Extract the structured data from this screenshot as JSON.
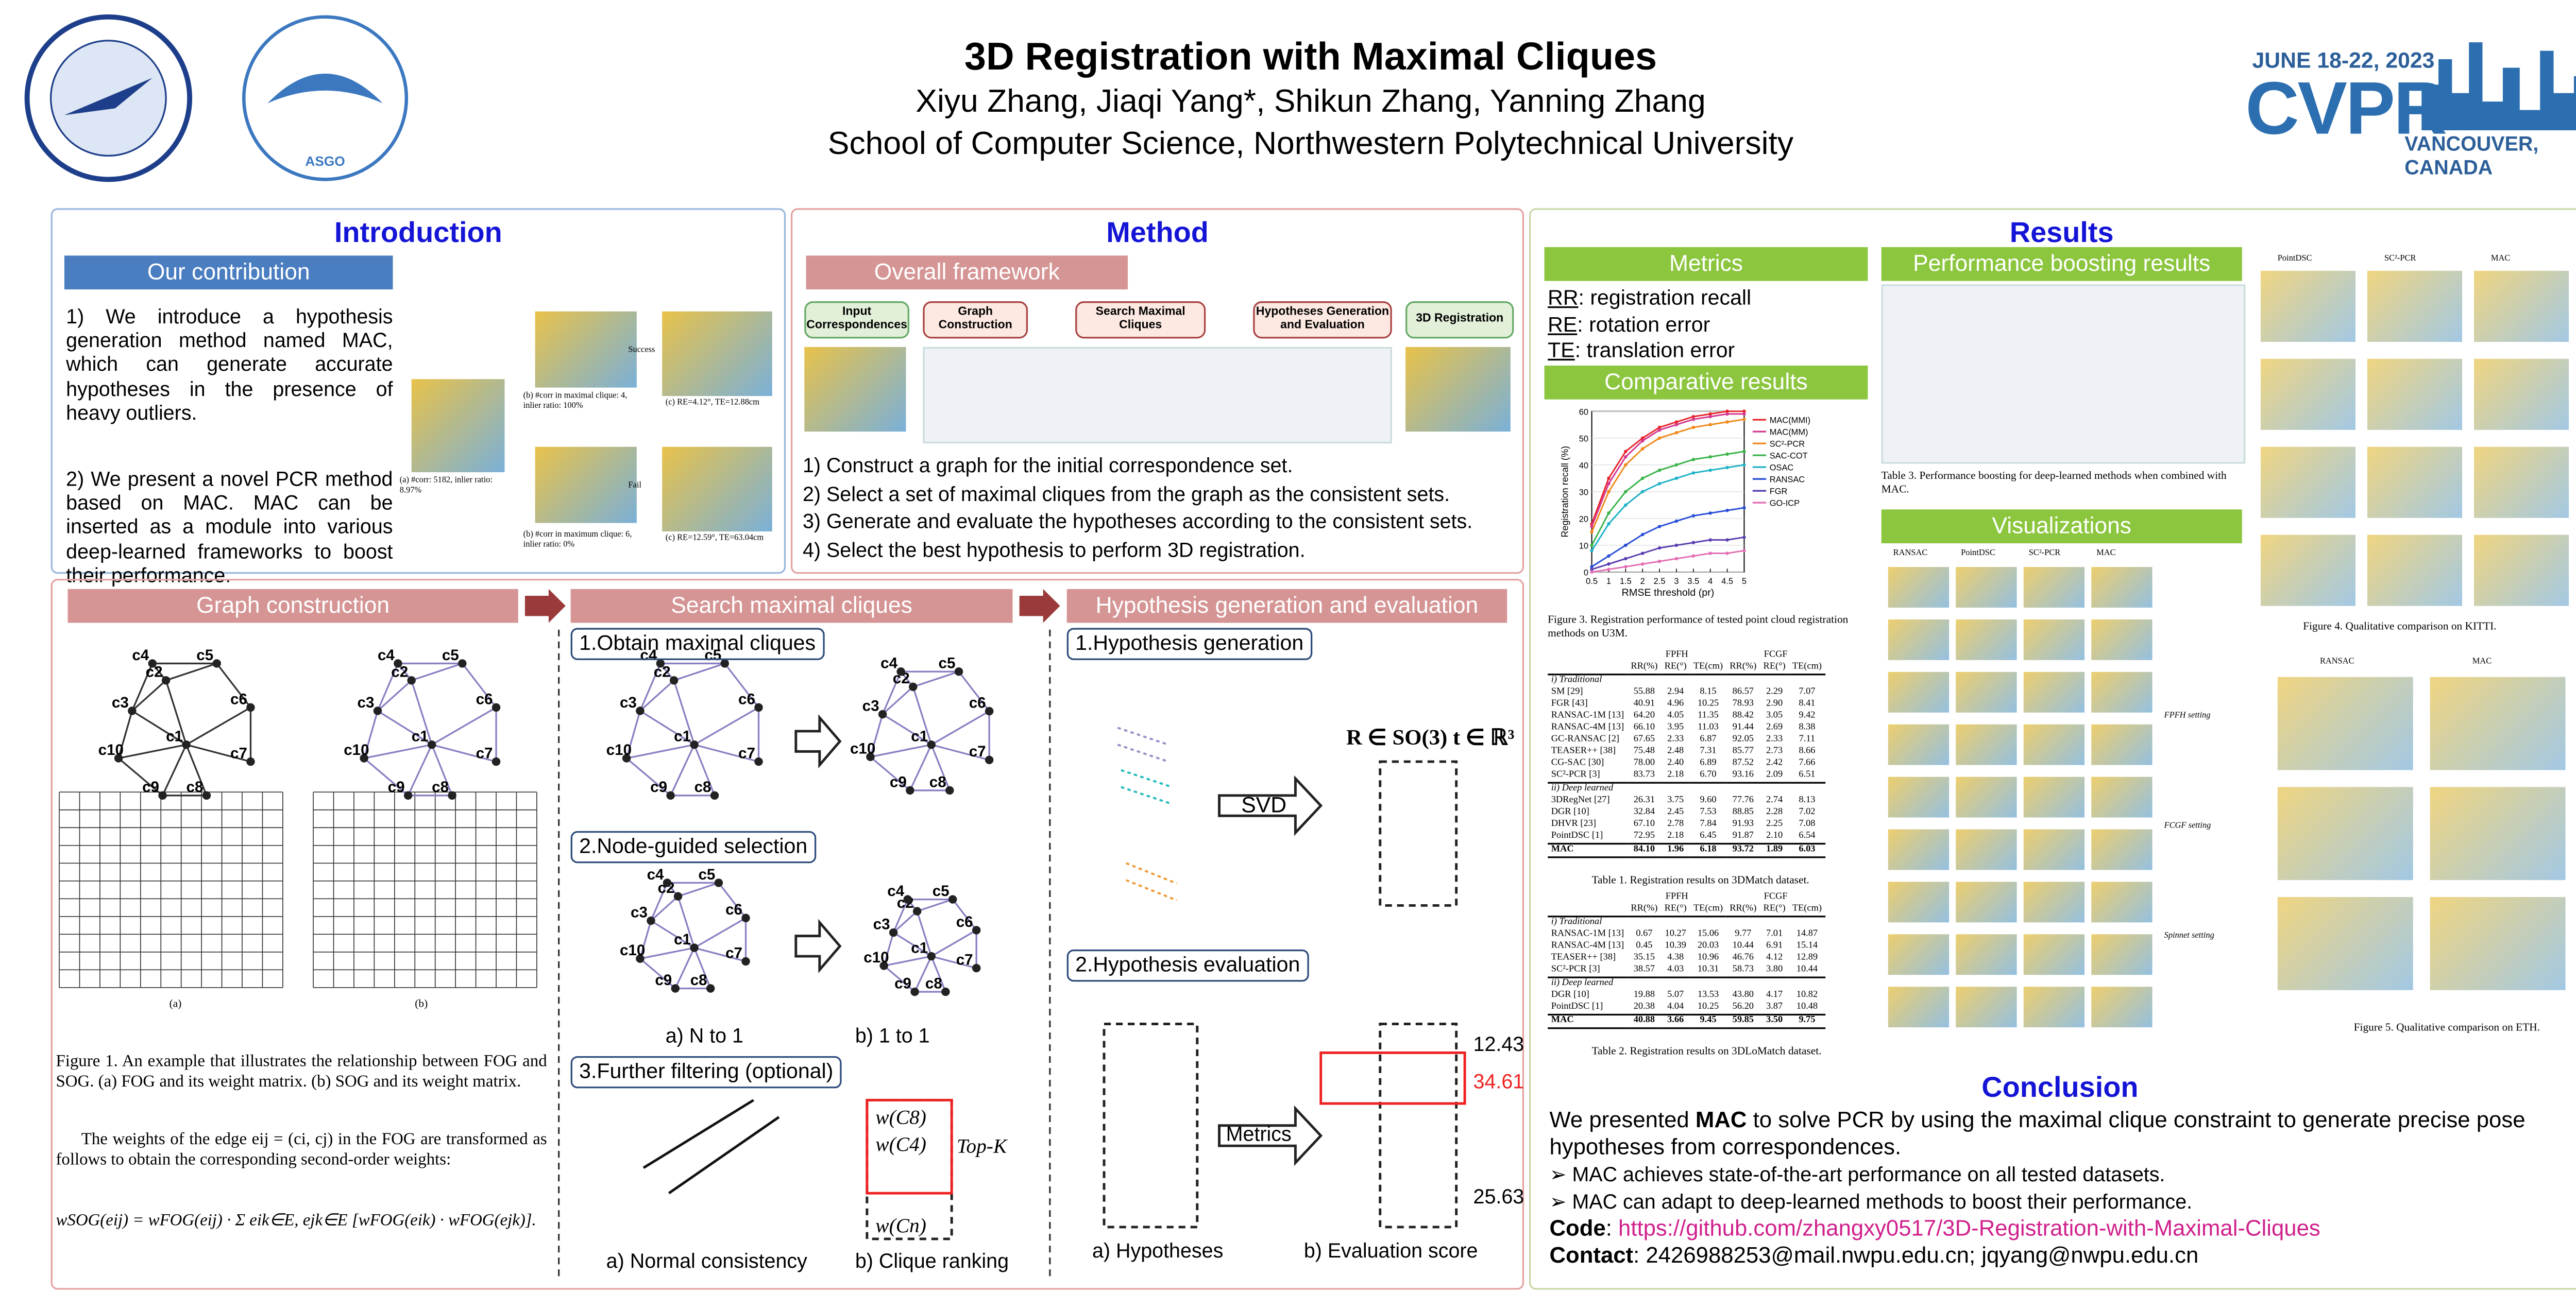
{
  "header": {
    "title": "3D Registration with Maximal Cliques",
    "authors": "Xiyu Zhang, Jiaqi Yang*, Shikun Zhang, Yanning Zhang",
    "affiliation": "School of Computer Science, Northwestern Polytechnical University",
    "conf_date": "JUNE 18-22, 2023",
    "conf_name": "CVPR",
    "conf_place": "VANCOUVER, CANADA",
    "logo2": "ASGO"
  },
  "introduction": {
    "title": "Introduction",
    "subtitle": "Our contribution",
    "points": [
      "1) We introduce a hypothesis generation method named MAC, which can generate accurate hypotheses in the presence of heavy outliers.",
      "2) We present a novel PCR method based on MAC. MAC can be inserted as a module into various deep-learned frameworks to boost their performance."
    ],
    "fig_labels": [
      "(a) #corr: 5182, inlier ratio: 8.97%",
      "(b) #corr in maximal clique: 4, inlier ratio: 100%",
      "(b) #corr in maximum clique: 6, inlier ratio: 0%",
      "(c) RE=4.12°, TE=12.88cm",
      "(c) RE=12.59°, TE=63.04cm",
      "Success",
      "Fail"
    ]
  },
  "method": {
    "title": "Method",
    "subtitle": "Overall framework",
    "flow": [
      "Input Correspondences",
      "Graph Construction",
      "Search Maximal Cliques",
      "Hypotheses Generation and Evaluation",
      "3D Registration"
    ],
    "steps": [
      "1) Construct a graph for the initial correspondence set.",
      "2) Select a set of maximal cliques from the graph as the consistent sets.",
      "3) Generate and evaluate the hypotheses according to the consistent sets.",
      "4) Select the best hypothesis to perform 3D registration."
    ]
  },
  "graph_construction": {
    "title": "Graph construction",
    "nodes": [
      "c1",
      "c2",
      "c3",
      "c4",
      "c5",
      "c6",
      "c7",
      "c8",
      "c9",
      "c10"
    ],
    "sub": [
      "(a)",
      "(b)"
    ],
    "caption": "Figure 1.  An example that illustrates the relationship between FOG and SOG. (a) FOG and its weight matrix. (b) SOG and its weight matrix.",
    "text": "The weights of the edge eij = (ci, cj) in the FOG are transformed as follows to obtain the corresponding second-order weights:",
    "formula": "wSOG(eij) = wFOG(eij) · Σ eik∈E, ejk∈E [wFOG(eik) · wFOG(ejk)]."
  },
  "search": {
    "title": "Search maximal cliques",
    "steps": [
      "1.Obtain maximal cliques",
      "2.Node-guided selection",
      "3.Further filtering (optional)"
    ],
    "labels": [
      "a) N to 1",
      "b) 1 to 1",
      "a) Normal consistency",
      "b) Clique ranking",
      "Top-K"
    ],
    "cliques": [
      "w(C8)",
      "w(C4)",
      "w(Cn)"
    ]
  },
  "hypothesis": {
    "title": "Hypothesis generation and evaluation",
    "steps": [
      "1.Hypothesis generation",
      "2.Hypothesis evaluation"
    ],
    "svd": "SVD",
    "formula": "R ∈ SO(3)  t ∈ ℝ³",
    "metrics": "Metrics",
    "labels": [
      "a) Hypotheses",
      "b) Evaluation score"
    ],
    "scores": [
      "12.43",
      "34.61",
      "25.63"
    ]
  },
  "results": {
    "title": "Results",
    "metrics_title": "Metrics",
    "metrics": [
      {
        "abbr": "RR",
        "text": ": registration recall"
      },
      {
        "abbr": "RE",
        "text": ": rotation error"
      },
      {
        "abbr": "TE",
        "text": ": translation error"
      }
    ],
    "comparative_title": "Comparative results",
    "boosting_title": "Performance boosting results",
    "visual_title": "Visualizations",
    "figure3": {
      "xlabel": "RMSE threshold (pr)",
      "ylabel": "Registration recall (%)",
      "xlim": [
        0.5,
        5
      ],
      "ylim": [
        0,
        60
      ],
      "xticks": [
        0.5,
        1,
        1.5,
        2,
        2.5,
        3,
        3.5,
        4,
        4.5,
        5
      ],
      "yticks": [
        0,
        10,
        20,
        30,
        40,
        50,
        60
      ],
      "x": [
        0.5,
        1,
        1.5,
        2,
        2.5,
        3,
        3.5,
        4,
        4.5,
        5
      ],
      "series": [
        {
          "name": "MAC(MMI)",
          "color": "#e8242a",
          "values": [
            18,
            35,
            45,
            50,
            54,
            56,
            58,
            59,
            60,
            60
          ]
        },
        {
          "name": "MAC(MM)",
          "color": "#d4398f",
          "values": [
            17,
            33,
            43,
            49,
            53,
            55,
            57,
            58,
            59,
            59
          ]
        },
        {
          "name": "SC²-PCR",
          "color": "#f08a1c",
          "values": [
            15,
            30,
            40,
            46,
            50,
            52,
            54,
            55,
            56,
            57
          ]
        },
        {
          "name": "SAC-COT",
          "color": "#3cb44b",
          "values": [
            10,
            22,
            30,
            35,
            38,
            40,
            42,
            43,
            44,
            45
          ]
        },
        {
          "name": "OSAC",
          "color": "#20b2c8",
          "values": [
            8,
            18,
            25,
            30,
            33,
            35,
            37,
            38,
            39,
            40
          ]
        },
        {
          "name": "RANSAC",
          "color": "#2a4fd6",
          "values": [
            2,
            6,
            10,
            14,
            17,
            19,
            21,
            22,
            23,
            24
          ]
        },
        {
          "name": "FGR",
          "color": "#5a3fb0",
          "values": [
            1,
            3,
            5,
            7,
            9,
            10,
            11,
            12,
            12,
            13
          ]
        },
        {
          "name": "GO-ICP",
          "color": "#e36fb4",
          "values": [
            0,
            1,
            2,
            3,
            4,
            5,
            6,
            7,
            7,
            8
          ]
        }
      ]
    },
    "figure3_caption": "Figure 3. Registration performance of tested point cloud registration methods on U3M.",
    "table1": {
      "caption": "Table 1. Registration results on 3DMatch dataset.",
      "groups": [
        "FPFH",
        "FCGF"
      ],
      "columns": [
        "RR(%)",
        "RE(°)",
        "TE(cm)",
        "RR(%)",
        "RE(°)",
        "TE(cm)"
      ],
      "sections": [
        {
          "title": "i) Traditional",
          "rows": [
            {
              "method": "SM [29]",
              "values": [
                "55.88",
                "2.94",
                "8.15",
                "86.57",
                "2.29",
                "7.07"
              ]
            },
            {
              "method": "FGR [43]",
              "values": [
                "40.91",
                "4.96",
                "10.25",
                "78.93",
                "2.90",
                "8.41"
              ]
            },
            {
              "method": "RANSAC-1M [13]",
              "values": [
                "64.20",
                "4.05",
                "11.35",
                "88.42",
                "3.05",
                "9.42"
              ]
            },
            {
              "method": "RANSAC-4M [13]",
              "values": [
                "66.10",
                "3.95",
                "11.03",
                "91.44",
                "2.69",
                "8.38"
              ]
            },
            {
              "method": "GC-RANSAC [2]",
              "values": [
                "67.65",
                "2.33",
                "6.87",
                "92.05",
                "2.33",
                "7.11"
              ]
            },
            {
              "method": "TEASER++ [38]",
              "values": [
                "75.48",
                "2.48",
                "7.31",
                "85.77",
                "2.73",
                "8.66"
              ]
            },
            {
              "method": "CG-SAC [30]",
              "values": [
                "78.00",
                "2.40",
                "6.89",
                "87.52",
                "2.42",
                "7.66"
              ]
            },
            {
              "method": "SC²-PCR [3]",
              "values": [
                "83.73",
                "2.18",
                "6.70",
                "93.16",
                "2.09",
                "6.51"
              ]
            }
          ]
        },
        {
          "title": "ii) Deep learned",
          "rows": [
            {
              "method": "3DRegNet [27]",
              "values": [
                "26.31",
                "3.75",
                "9.60",
                "77.76",
                "2.74",
                "8.13"
              ]
            },
            {
              "method": "DGR [10]",
              "values": [
                "32.84",
                "2.45",
                "7.53",
                "88.85",
                "2.28",
                "7.02"
              ]
            },
            {
              "method": "DHVR [23]",
              "values": [
                "67.10",
                "2.78",
                "7.84",
                "91.93",
                "2.25",
                "7.08"
              ]
            },
            {
              "method": "PointDSC [1]",
              "values": [
                "72.95",
                "2.18",
                "6.45",
                "91.87",
                "2.10",
                "6.54"
              ]
            }
          ]
        },
        {
          "title": "MAC",
          "rows": [
            {
              "method": "MAC",
              "values": [
                "84.10",
                "1.96",
                "6.18",
                "93.72",
                "1.89",
                "6.03"
              ]
            }
          ]
        }
      ]
    },
    "table2": {
      "caption": "Table 2. Registration results on 3DLoMatch dataset.",
      "groups": [
        "FPFH",
        "FCGF"
      ],
      "columns": [
        "RR(%)",
        "RE(°)",
        "TE(cm)",
        "RR(%)",
        "RE(°)",
        "TE(cm)"
      ],
      "sections": [
        {
          "title": "i) Traditional",
          "rows": [
            {
              "method": "RANSAC-1M [13]",
              "values": [
                "0.67",
                "10.27",
                "15.06",
                "9.77",
                "7.01",
                "14.87"
              ]
            },
            {
              "method": "RANSAC-4M [13]",
              "values": [
                "0.45",
                "10.39",
                "20.03",
                "10.44",
                "6.91",
                "15.14"
              ]
            },
            {
              "method": "TEASER++ [38]",
              "values": [
                "35.15",
                "4.38",
                "10.96",
                "46.76",
                "4.12",
                "12.89"
              ]
            },
            {
              "method": "SC²-PCR [3]",
              "values": [
                "38.57",
                "4.03",
                "10.31",
                "58.73",
                "3.80",
                "10.44"
              ]
            }
          ]
        },
        {
          "title": "ii) Deep learned",
          "rows": [
            {
              "method": "DGR [10]",
              "values": [
                "19.88",
                "5.07",
                "13.53",
                "43.80",
                "4.17",
                "10.82"
              ]
            },
            {
              "method": "PointDSC [1]",
              "values": [
                "20.38",
                "4.04",
                "10.25",
                "56.20",
                "3.87",
                "10.48"
              ]
            }
          ]
        },
        {
          "title": "MAC",
          "rows": [
            {
              "method": "MAC",
              "values": [
                "40.88",
                "3.66",
                "9.45",
                "59.85",
                "3.50",
                "9.75"
              ]
            }
          ]
        }
      ]
    },
    "table3_caption": "Table 3.  Performance boosting for deep-learned methods when combined with MAC.",
    "vis_columns": [
      "RANSAC",
      "PointDSC",
      "SC²-PCR",
      "MAC"
    ],
    "kitti_columns": [
      "PointDSC",
      "SC²-PCR",
      "MAC"
    ],
    "eth_columns": [
      "RANSAC",
      "MAC"
    ],
    "vis_settings": [
      "FPFH setting",
      "FCGF setting",
      "Spinnet setting"
    ],
    "kitti_caption": "Figure 4. Qualitative comparison on KITTI.",
    "eth_caption": "Figure 5. Qualitative comparison on ETH."
  },
  "conclusion": {
    "title": "Conclusion",
    "text_pre": "We presented ",
    "text_bold": "MAC",
    "text_post": " to solve PCR by using the maximal clique constraint to generate precise pose hypotheses from correspondences.",
    "bullets": [
      "MAC achieves state-of-the-art performance on all tested datasets.",
      "MAC can adapt to deep-learned methods to boost their performance."
    ],
    "code_label": "Code",
    "code_url": "https://github.com/zhangxy0517/3D-Registration-with-Maximal-Cliques",
    "contact_label": "Contact",
    "contact": ": 2426988253@mail.nwpu.edu.cn; jqyang@nwpu.edu.cn"
  }
}
